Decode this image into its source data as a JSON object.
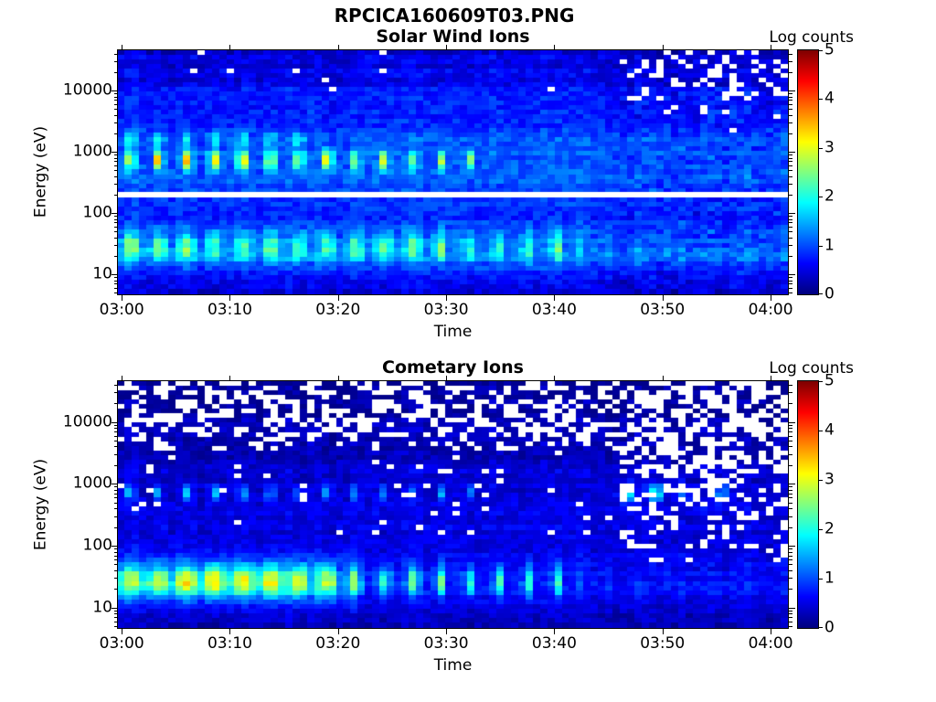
{
  "figure": {
    "title": "RPCICA160609T03.PNG",
    "colorbar_label": "Log counts",
    "xlabel": "Time",
    "ylabel": "Energy (eV)"
  },
  "panels": [
    {
      "title": "Solar Wind Ions"
    },
    {
      "title": "Cometary Ions"
    }
  ],
  "chart_data": [
    {
      "type": "heatmap",
      "title": "Solar Wind Ions",
      "xlabel": "Time",
      "ylabel": "Energy (eV)",
      "y_scale": "log",
      "colormap": "jet",
      "value_label": "Log counts",
      "value_range": [
        0,
        5
      ],
      "colorbar_ticks": [
        {
          "label": "0",
          "v": 0
        },
        {
          "label": "1",
          "v": 1
        },
        {
          "label": "2",
          "v": 2
        },
        {
          "label": "3",
          "v": 3
        },
        {
          "label": "4",
          "v": 4
        },
        {
          "label": "5",
          "v": 5
        }
      ],
      "x_ticks": [
        {
          "label": "03:00",
          "min": 0
        },
        {
          "label": "03:10",
          "min": 10
        },
        {
          "label": "03:20",
          "min": 20
        },
        {
          "label": "03:30",
          "min": 30
        },
        {
          "label": "03:40",
          "min": 40
        },
        {
          "label": "03:50",
          "min": 50
        },
        {
          "label": "04:00",
          "min": 60
        }
      ],
      "x_range_min": [
        -0.35,
        61.6
      ],
      "y_ticks": [
        {
          "label": "10",
          "eV": 10
        },
        {
          "label": "100",
          "eV": 100
        },
        {
          "label": "1000",
          "eV": 1000
        },
        {
          "label": "10000",
          "eV": 10000
        }
      ],
      "y_range_ev": [
        4.7,
        45400
      ],
      "grid": {
        "cols": 92,
        "rows": 53
      },
      "features_note": "Periodic solar-wind proton beam blobs near 700 eV every ~2.6 min until ~03:33 (yellow, log counts ~3); fainter alpha blobs near 1600 eV until ~03:18; persistent low-energy ion band near 20-40 eV; white data-gap line at ~200 eV; white missing-data speckles above ~7000 eV after ~03:46.",
      "render": {
        "kind": "solar",
        "seed": 7,
        "noise": 0.45,
        "base_profile": [
          [
            0.67,
            0.5
          ],
          [
            1.0,
            0.8
          ],
          [
            1.3,
            1.2
          ],
          [
            1.6,
            1.05
          ],
          [
            1.9,
            0.8
          ],
          [
            2.2,
            0.9
          ],
          [
            2.6,
            1.0
          ],
          [
            3.0,
            1.05
          ],
          [
            3.4,
            0.9
          ],
          [
            3.8,
            0.7
          ],
          [
            4.2,
            0.55
          ],
          [
            4.66,
            0.42
          ]
        ],
        "right_t": 45.8,
        "beam": {
          "t0": 0.9,
          "period": 2.55,
          "accel": 0.006,
          "tend": 33,
          "t_fade": 20,
          "L": 2.845,
          "sigL": 0.11,
          "sigT": 0.32,
          "amp": 2.7,
          "amp_mid": 0.78,
          "amp_late": 0.6
        },
        "beam2": {
          "tend": 17,
          "L": 3.19,
          "sigL": 0.085,
          "sigT": 0.3,
          "amp": 1.3
        },
        "lowband": {
          "L": 1.44,
          "sigL": 0.17,
          "sigT": 0.55,
          "amp": 1.55,
          "amp_mid": 1.25,
          "t_right": 45,
          "amp_right": 0.9
        },
        "white_line_logE": [
          2.26,
          2.345
        ],
        "speckle": {
          "t_split": 45.8,
          "top_L": 3.8,
          "p_top": 0.2,
          "mid_L": 3.25,
          "p_mid": 0.035,
          "left_L": 3.95,
          "p_left": 0.012
        }
      }
    },
    {
      "type": "heatmap",
      "title": "Cometary Ions",
      "xlabel": "Time",
      "ylabel": "Energy (eV)",
      "y_scale": "log",
      "colormap": "jet",
      "value_label": "Log counts",
      "value_range": [
        0,
        5
      ],
      "colorbar_ticks": [
        {
          "label": "0",
          "v": 0
        },
        {
          "label": "1",
          "v": 1
        },
        {
          "label": "2",
          "v": 2
        },
        {
          "label": "3",
          "v": 3
        },
        {
          "label": "4",
          "v": 4
        },
        {
          "label": "5",
          "v": 5
        }
      ],
      "x_ticks": [
        {
          "label": "03:00",
          "min": 0
        },
        {
          "label": "03:10",
          "min": 10
        },
        {
          "label": "03:20",
          "min": 20
        },
        {
          "label": "03:30",
          "min": 30
        },
        {
          "label": "03:40",
          "min": 40
        },
        {
          "label": "03:50",
          "min": 50
        },
        {
          "label": "04:00",
          "min": 60
        }
      ],
      "x_range_min": [
        -0.35,
        61.6
      ],
      "y_ticks": [
        {
          "label": "10",
          "eV": 10
        },
        {
          "label": "100",
          "eV": 100
        },
        {
          "label": "1000",
          "eV": 1000
        },
        {
          "label": "10000",
          "eV": 10000
        }
      ],
      "y_range_ev": [
        4.7,
        45400
      ],
      "grid": {
        "cols": 92,
        "rows": 53
      },
      "features_note": "Dark background with heavy white missing-data speckle above ~5000 eV, extending down to ~100 eV after ~03:46; faint periodic cyan dashes near 700 eV until ~03:35 with brighter blobs ~03:47-03:50; bright periodic cometary-ion band near 20-50 eV across the whole interval (merged before ~03:20).",
      "render": {
        "kind": "comet",
        "seed": 13,
        "noise": 0.38,
        "base_profile": [
          [
            0.67,
            0.32
          ],
          [
            1.0,
            0.5
          ],
          [
            1.42,
            0.7
          ],
          [
            1.8,
            0.52
          ],
          [
            2.2,
            0.45
          ],
          [
            2.7,
            0.42
          ],
          [
            3.2,
            0.38
          ],
          [
            3.6,
            0.3
          ],
          [
            4.0,
            0.2
          ],
          [
            4.66,
            0.1
          ]
        ],
        "beam": {
          "t0": 0.9,
          "period": 2.55,
          "accel": 0.006,
          "tend": 35,
          "t_fade": 21,
          "L": 2.85,
          "sigL": 0.085,
          "sigT": 0.28,
          "amp": 1.6,
          "amp_late": 1.1
        },
        "late_blobs": [
          [
            46.8,
            2.0
          ],
          [
            49.4,
            1.8
          ],
          [
            52.0,
            0.9
          ],
          [
            55.6,
            1.1
          ]
        ],
        "lowband": {
          "L": 1.42,
          "sigL": 0.17,
          "merge_t": 20,
          "sigT_merged": 0.85,
          "sigT": 0.42,
          "amp": 2.2,
          "amp2": 2.0,
          "decay": 0.004,
          "ridge": 0.55,
          "ridge_sigL": 0.3
        },
        "speckle": {
          "top1_L": 3.72,
          "p_top1": 0.42,
          "top2_L": 3.5,
          "p_top2": 0.2,
          "mid_Lmin": 2.2,
          "mid_p": 0.042,
          "t_split": 46.2,
          "right_levels": [
            [
              3.4,
              0.5
            ],
            [
              2.9,
              0.38
            ],
            [
              2.4,
              0.3
            ],
            [
              1.95,
              0.18
            ],
            [
              1.7,
              0.08
            ]
          ]
        }
      }
    }
  ]
}
